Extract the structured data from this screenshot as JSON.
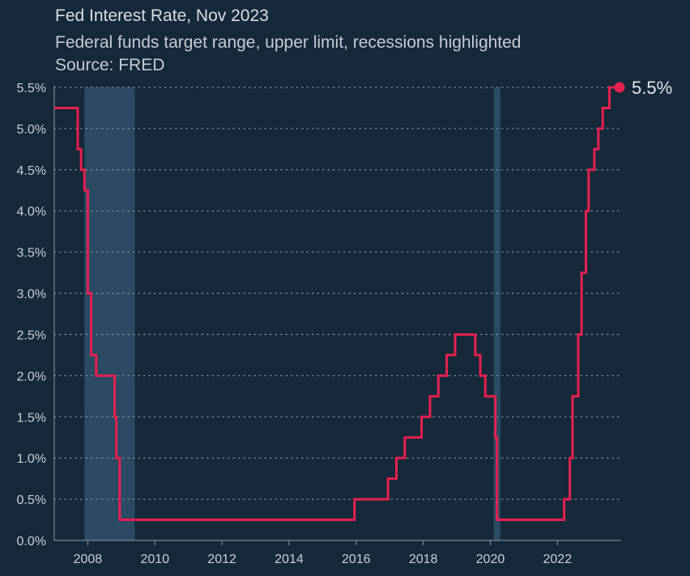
{
  "title": "Fed Interest Rate, Nov 2023",
  "subtitle": "Federal funds target range, upper limit, recessions highlighted",
  "source": "Source: FRED",
  "colors": {
    "background": "#16293a",
    "line": "#e5204f",
    "recession": "#2b4a63",
    "grid": "#8da0b0",
    "text": "#c6d0d9"
  },
  "chart_data": {
    "type": "line",
    "title": "Fed Interest Rate, Nov 2023",
    "subtitle": "Federal funds target range, upper limit, recessions highlighted",
    "source": "Source: FRED",
    "xlim": [
      2007.0,
      2023.9
    ],
    "ylim": [
      0,
      5.5
    ],
    "x_ticks": [
      2008,
      2010,
      2012,
      2014,
      2016,
      2018,
      2020,
      2022
    ],
    "y_ticks": [
      0,
      0.5,
      1.0,
      1.5,
      2.0,
      2.5,
      3.0,
      3.5,
      4.0,
      4.5,
      5.0,
      5.5
    ],
    "y_tick_labels": [
      "0.0%",
      "0.5%",
      "1.0%",
      "1.5%",
      "2.0%",
      "2.5%",
      "3.0%",
      "3.5%",
      "4.0%",
      "4.5%",
      "5.0%",
      "5.5%"
    ],
    "grid": "horizontal dotted",
    "recessions": [
      {
        "start": 2007.9,
        "end": 2009.4
      },
      {
        "start": 2020.1,
        "end": 2020.3
      }
    ],
    "series": [
      {
        "step": "post",
        "x": [
          2007.0,
          2007.7,
          2007.8,
          2007.9,
          2008.0,
          2008.1,
          2008.25,
          2008.8,
          2008.85,
          2008.95,
          2015.95,
          2016.95,
          2017.2,
          2017.45,
          2017.95,
          2018.2,
          2018.45,
          2018.7,
          2018.95,
          2019.55,
          2019.7,
          2019.85,
          2020.15,
          2020.2,
          2022.2,
          2022.37,
          2022.45,
          2022.62,
          2022.72,
          2022.85,
          2022.93,
          2023.1,
          2023.22,
          2023.35,
          2023.55,
          2023.9
        ],
        "y": [
          5.25,
          4.75,
          4.5,
          4.25,
          3.0,
          2.25,
          2.0,
          1.5,
          1.0,
          0.25,
          0.5,
          0.75,
          1.0,
          1.25,
          1.5,
          1.75,
          2.0,
          2.25,
          2.5,
          2.25,
          2.0,
          1.75,
          1.25,
          0.25,
          0.5,
          1.0,
          1.75,
          2.5,
          3.25,
          4.0,
          4.5,
          4.75,
          5.0,
          5.25,
          5.5,
          5.5
        ]
      }
    ],
    "end_label": "5.5%"
  }
}
